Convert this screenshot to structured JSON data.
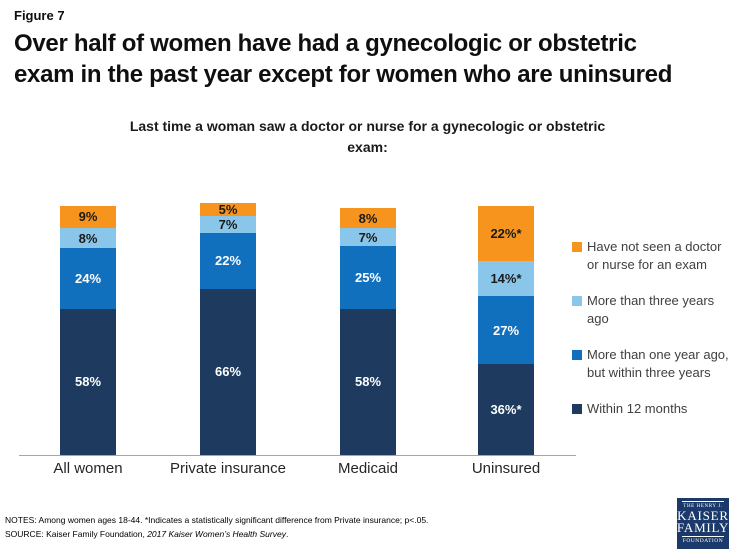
{
  "figure_label": "Figure 7",
  "title": "Over half of women have had a gynecologic or obstetric exam in the past year except for women who are uninsured",
  "title_lines": [
    "Over half of women have had a gynecologic or obstetric",
    "exam in the past year except for women who are uninsured"
  ],
  "subtitle": "Last time a woman saw a doctor or nurse for a gynecologic or obstetric exam:",
  "subtitle_lines": [
    "Last time a woman saw a doctor or nurse for a gynecologic or obstetric",
    "exam:"
  ],
  "chart_data": {
    "type": "bar",
    "stacked": true,
    "title": "Last time a woman saw a doctor or nurse for a gynecologic or obstetric exam:",
    "categories": [
      "All women",
      "Private insurance",
      "Medicaid",
      "Uninsured"
    ],
    "series": [
      {
        "name": "Within 12 months",
        "color": "#1e3a5f",
        "label_color": "#ffffff",
        "values": [
          58,
          66,
          58,
          36
        ],
        "labels": [
          "58%",
          "66%",
          "58%",
          "36%*"
        ]
      },
      {
        "name": "More than one year ago, but within three years",
        "color": "#1170be",
        "label_color": "#ffffff",
        "values": [
          24,
          22,
          25,
          27
        ],
        "labels": [
          "24%",
          "22%",
          "25%",
          "27%"
        ]
      },
      {
        "name": "More than three years ago",
        "color": "#8ac6e9",
        "label_color": "#1a1a1a",
        "values": [
          8,
          7,
          7,
          14
        ],
        "labels": [
          "8%",
          "7%",
          "7%",
          "14%*"
        ]
      },
      {
        "name": "Have not seen a doctor or nurse for an exam",
        "color": "#f7941d",
        "label_color": "#1a1a1a",
        "values": [
          9,
          5,
          8,
          22
        ],
        "labels": [
          "9%",
          "5%",
          "8%",
          "22%*"
        ]
      }
    ],
    "ylim": [
      0,
      100
    ],
    "grid": false,
    "legend_position": "right",
    "axis_color": "#a6a6a6",
    "asterisk_note": "*Indicates a statistically significant difference from Private insurance; p<.05."
  },
  "notes": {
    "notes_line": "NOTES: Among women ages 18-44. *Indicates a statistically significant difference from Private insurance; p<.05.",
    "source_prefix": "SOURCE: Kaiser Family Foundation, ",
    "source_italic": "2017 Kaiser Women’s Health Survey",
    "source_suffix": "."
  },
  "logo": {
    "line1": "THE HENRY J.",
    "line2": "KAISER",
    "line3": "FAMILY",
    "line4": "FOUNDATION"
  }
}
